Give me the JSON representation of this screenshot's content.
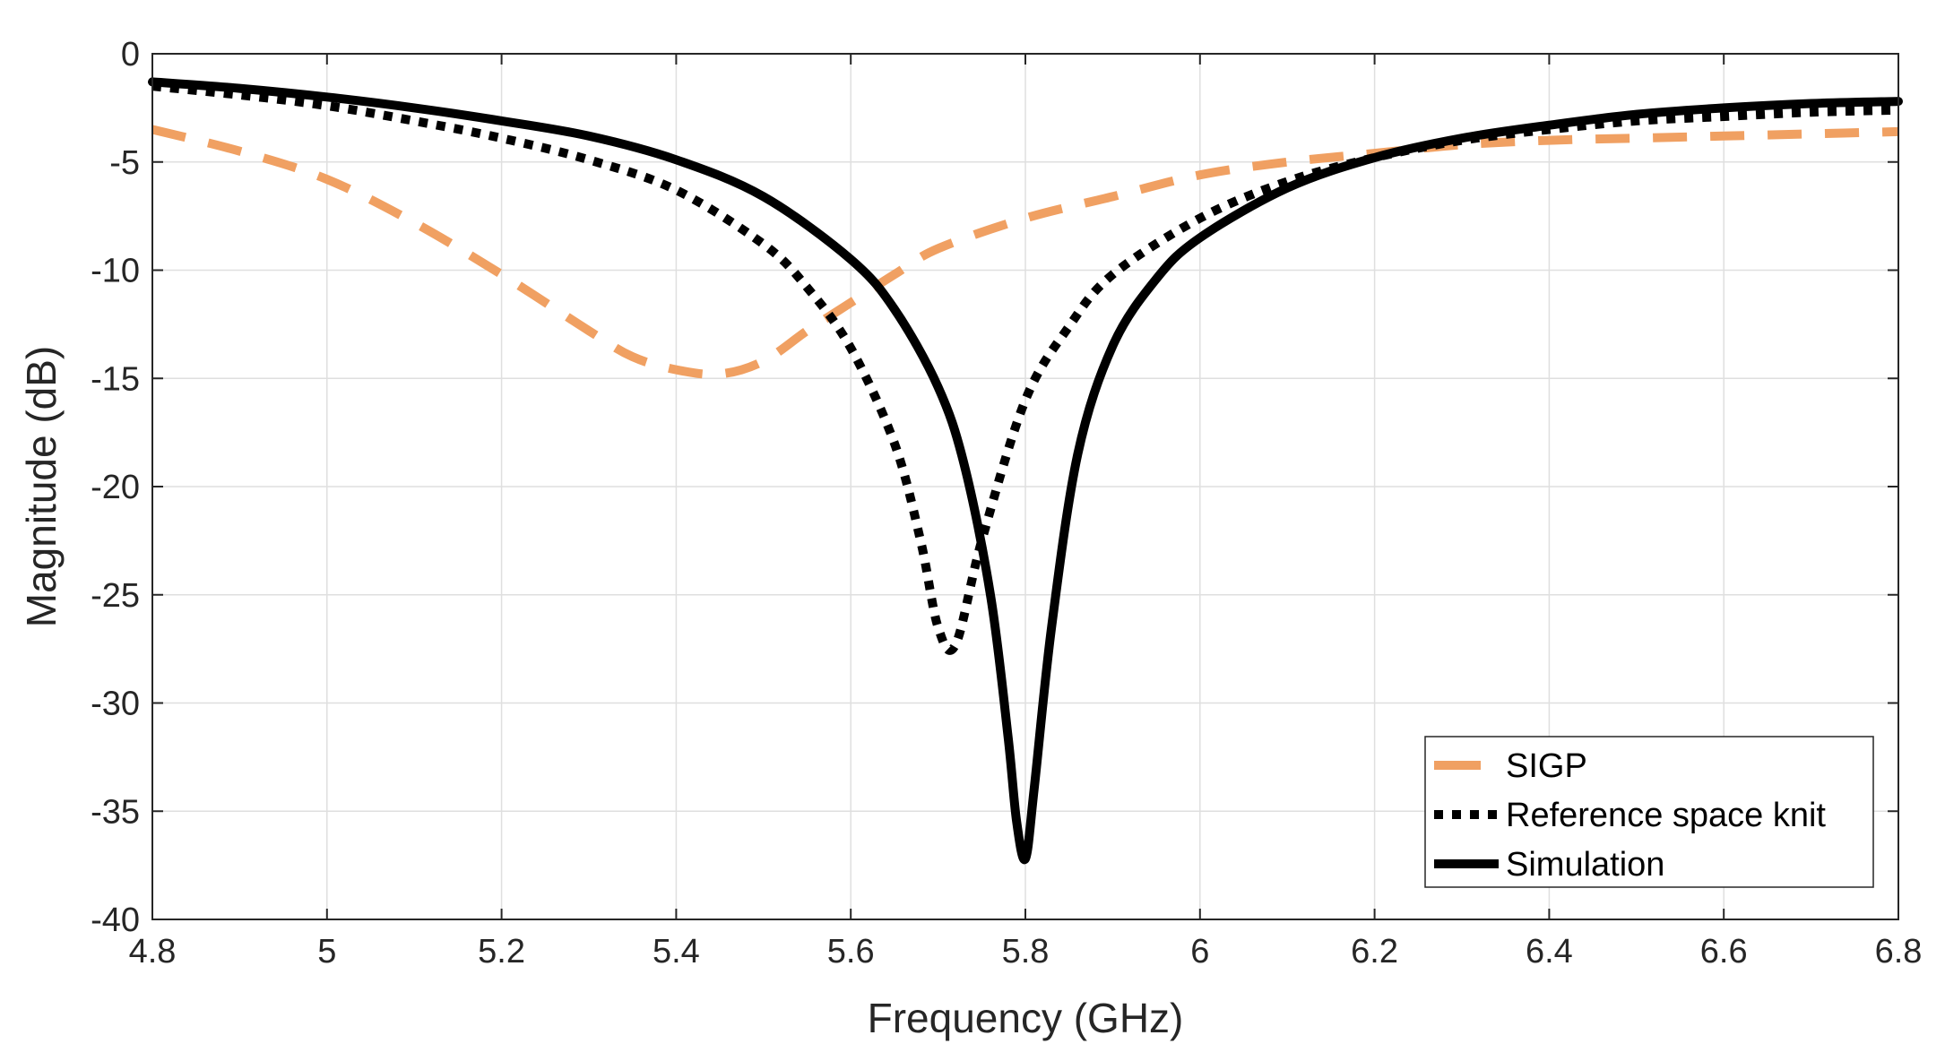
{
  "chart_data": {
    "type": "line",
    "title": "",
    "xlabel": "Frequency (GHz)",
    "ylabel": "Magnitude (dB)",
    "xlim": [
      4.8,
      6.8
    ],
    "ylim": [
      -40,
      0
    ],
    "xticks": [
      4.8,
      5.0,
      5.2,
      5.4,
      5.6,
      5.8,
      6.0,
      6.2,
      6.4,
      6.6,
      6.8
    ],
    "xtick_labels": [
      "4.8",
      "5",
      "5.2",
      "5.4",
      "5.6",
      "5.8",
      "6",
      "6.2",
      "6.4",
      "6.6",
      "6.8"
    ],
    "yticks": [
      0,
      -5,
      -10,
      -15,
      -20,
      -25,
      -30,
      -35,
      -40
    ],
    "ytick_labels": [
      "0",
      "-5",
      "-10",
      "-15",
      "-20",
      "-25",
      "-30",
      "-35",
      "-40"
    ],
    "grid": true,
    "legend_position": "bottom-right",
    "series": [
      {
        "name": "SIGP",
        "color": "#f0a062",
        "style": "dashed",
        "x": [
          4.8,
          4.9,
          5.0,
          5.1,
          5.2,
          5.3,
          5.35,
          5.4,
          5.45,
          5.5,
          5.55,
          5.6,
          5.65,
          5.7,
          5.8,
          5.9,
          6.0,
          6.1,
          6.2,
          6.3,
          6.4,
          6.5,
          6.6,
          6.7,
          6.8
        ],
        "y": [
          -3.5,
          -4.5,
          -5.8,
          -7.8,
          -10.2,
          -12.8,
          -14.0,
          -14.6,
          -14.8,
          -14.2,
          -12.8,
          -11.5,
          -10.2,
          -9.0,
          -7.6,
          -6.6,
          -5.6,
          -5.0,
          -4.6,
          -4.2,
          -4.0,
          -3.9,
          -3.8,
          -3.7,
          -3.6
        ]
      },
      {
        "name": "Reference space knit",
        "color": "#000000",
        "style": "dotted",
        "x": [
          4.8,
          4.9,
          5.0,
          5.1,
          5.2,
          5.3,
          5.4,
          5.5,
          5.55,
          5.6,
          5.65,
          5.68,
          5.7,
          5.72,
          5.75,
          5.8,
          5.85,
          5.9,
          6.0,
          6.1,
          6.2,
          6.3,
          6.4,
          6.5,
          6.6,
          6.7,
          6.8
        ],
        "y": [
          -1.5,
          -1.9,
          -2.4,
          -3.1,
          -3.9,
          -4.9,
          -6.3,
          -8.8,
          -10.8,
          -13.6,
          -18.0,
          -22.5,
          -26.5,
          -27.3,
          -22.5,
          -16.0,
          -12.6,
          -10.2,
          -7.6,
          -5.9,
          -4.8,
          -4.0,
          -3.5,
          -3.1,
          -2.9,
          -2.7,
          -2.6
        ]
      },
      {
        "name": "Simulation",
        "color": "#000000",
        "style": "solid",
        "x": [
          4.8,
          4.9,
          5.0,
          5.1,
          5.2,
          5.3,
          5.4,
          5.5,
          5.6,
          5.65,
          5.7,
          5.73,
          5.76,
          5.78,
          5.79,
          5.8,
          5.81,
          5.83,
          5.86,
          5.9,
          5.95,
          6.0,
          6.1,
          6.2,
          6.3,
          6.4,
          6.5,
          6.6,
          6.7,
          6.8
        ],
        "y": [
          -1.3,
          -1.6,
          -2.0,
          -2.5,
          -3.1,
          -3.8,
          -4.9,
          -6.6,
          -9.5,
          -11.8,
          -15.4,
          -19.0,
          -25.0,
          -31.5,
          -35.5,
          -37.2,
          -34.0,
          -26.5,
          -18.5,
          -13.5,
          -10.4,
          -8.5,
          -6.2,
          -4.8,
          -3.9,
          -3.3,
          -2.8,
          -2.5,
          -2.3,
          -2.2
        ]
      }
    ]
  }
}
